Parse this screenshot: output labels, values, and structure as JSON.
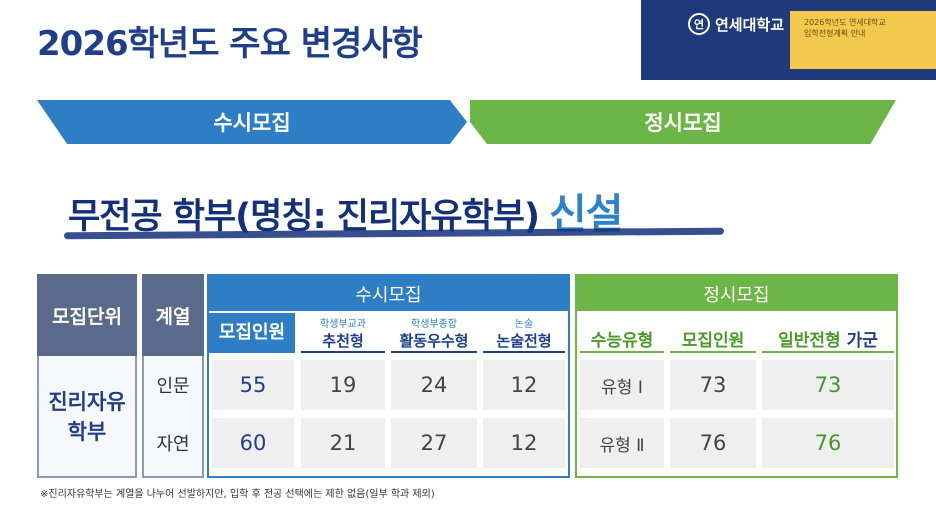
{
  "title": "2026학년도 주요 변경사항",
  "header": {
    "logo_text": "연세대학교",
    "logo_seal": "연",
    "note_line1": "2026학년도 연세대학교",
    "note_line2": "입학전형계획 안내"
  },
  "banners": {
    "susi": "수시모집",
    "jeongsi": "정시모집"
  },
  "headline": {
    "main": "무전공 학부(명칭: 진리자유학부)",
    "highlight": "신설"
  },
  "table": {
    "unit_header": "모집단위",
    "series_header": "계열",
    "unit_name_line1": "진리자유",
    "unit_name_line2": "학부",
    "susi_header": "수시모집",
    "jeongsi_header": "정시모집",
    "susi_cols": [
      {
        "small": "",
        "main": "모집인원"
      },
      {
        "small": "학생부교과",
        "main": "추천형"
      },
      {
        "small": "학생부종합",
        "main": "활동우수형"
      },
      {
        "small": "논술",
        "main": "논술전형"
      }
    ],
    "jeongsi_cols": [
      {
        "main": "수능유형"
      },
      {
        "main": "모집인원"
      },
      {
        "main": "일반전형",
        "suffix": "가군"
      }
    ],
    "rows": [
      {
        "series": "인문",
        "susi": [
          "55",
          "19",
          "24",
          "12"
        ],
        "jeongsi": [
          "유형 Ⅰ",
          "73",
          "73"
        ]
      },
      {
        "series": "자연",
        "susi": [
          "60",
          "21",
          "27",
          "12"
        ],
        "jeongsi": [
          "유형 Ⅱ",
          "76",
          "76"
        ]
      }
    ]
  },
  "footnote": "※진리자유학부는 계열을 나누어 선발하지만, 입학 후 전공 선택에는 제한 없음(일부 학과 제외)",
  "colors": {
    "navy": "#1f3f8a",
    "blue": "#2d7ec4",
    "green": "#6db547",
    "yellow": "#f2c94c"
  }
}
